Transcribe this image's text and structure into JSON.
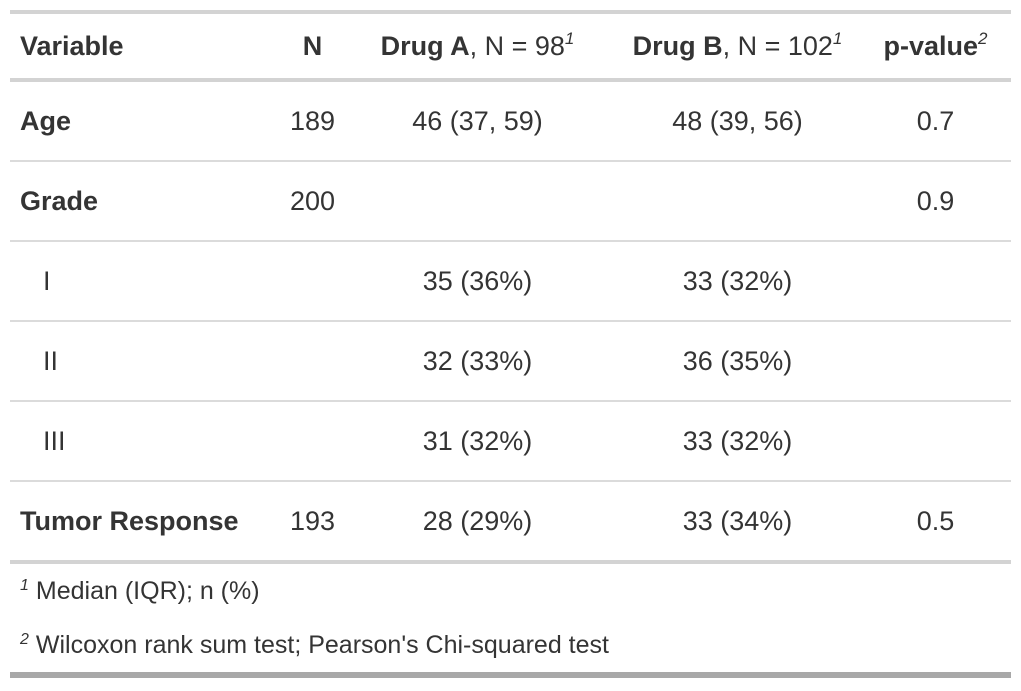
{
  "table": {
    "columns": [
      {
        "bold": "Variable",
        "rest": "",
        "sup": ""
      },
      {
        "bold": "N",
        "rest": "",
        "sup": ""
      },
      {
        "bold": "Drug A",
        "rest": ", N = 98",
        "sup": "1"
      },
      {
        "bold": "Drug B",
        "rest": ", N = 102",
        "sup": "1"
      },
      {
        "bold": "p-value",
        "rest": "",
        "sup": "2"
      }
    ],
    "rows": [
      {
        "label": "Age",
        "n": "189",
        "drug_a": "46 (37, 59)",
        "drug_b": "48 (39, 56)",
        "p_value": "0.7"
      },
      {
        "label": "Grade",
        "n": "200",
        "drug_a": "",
        "drug_b": "",
        "p_value": "0.9"
      },
      {
        "label": "I",
        "n": "",
        "drug_a": "35 (36%)",
        "drug_b": "33 (32%)",
        "p_value": ""
      },
      {
        "label": "II",
        "n": "",
        "drug_a": "32 (33%)",
        "drug_b": "36 (35%)",
        "p_value": ""
      },
      {
        "label": "III",
        "n": "",
        "drug_a": "31 (32%)",
        "drug_b": "33 (32%)",
        "p_value": ""
      },
      {
        "label": "Tumor Response",
        "n": "193",
        "drug_a": "28 (29%)",
        "drug_b": "33 (34%)",
        "p_value": "0.5"
      }
    ]
  },
  "footnotes": [
    {
      "marker": "1",
      "text": "Median (IQR); n (%)"
    },
    {
      "marker": "2",
      "text": "Wilcoxon rank sum test; Pearson's Chi-squared test"
    }
  ],
  "colors": {
    "text": "#343434",
    "border_light": "#d3d3d3",
    "border_row": "#dbdbdb",
    "border_bottom_dark": "#a8a8a8",
    "background": "#ffffff"
  }
}
